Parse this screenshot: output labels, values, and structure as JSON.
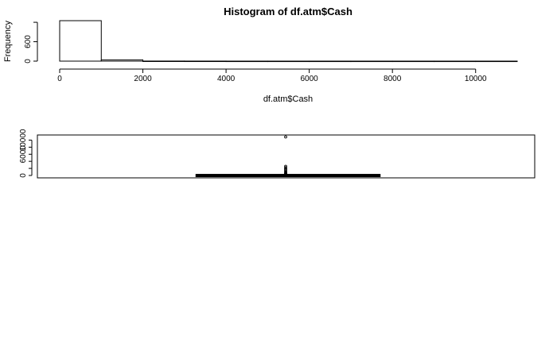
{
  "chart_data": [
    {
      "type": "histogram",
      "title": "Histogram of df.atm$Cash",
      "xlabel": "df.atm$Cash",
      "ylabel": "Frequency",
      "xlim": [
        0,
        11000
      ],
      "ylim": [
        0,
        1300
      ],
      "x_ticks": [
        0,
        2000,
        4000,
        6000,
        8000,
        10000
      ],
      "y_ticks": [
        0,
        600
      ],
      "bins": [
        {
          "x0": 0,
          "x1": 1000,
          "count": 1250
        },
        {
          "x0": 1000,
          "x1": 2000,
          "count": 40
        },
        {
          "x0": 2000,
          "x1": 3000,
          "count": 3
        },
        {
          "x0": 3000,
          "x1": 4000,
          "count": 2
        },
        {
          "x0": 4000,
          "x1": 5000,
          "count": 1
        },
        {
          "x0": 5000,
          "x1": 6000,
          "count": 1
        },
        {
          "x0": 6000,
          "x1": 7000,
          "count": 1
        },
        {
          "x0": 7000,
          "x1": 8000,
          "count": 1
        },
        {
          "x0": 8000,
          "x1": 9000,
          "count": 1
        },
        {
          "x0": 9000,
          "x1": 10000,
          "count": 1
        },
        {
          "x0": 10000,
          "x1": 11000,
          "count": 1
        }
      ]
    },
    {
      "type": "boxplot",
      "title": "",
      "ylabel": "",
      "ylim": [
        0,
        11000
      ],
      "y_ticks": [
        0,
        6000,
        10000
      ],
      "median": 70,
      "q1": 25,
      "q3": 150,
      "whisker_low": 0,
      "whisker_high": 340,
      "outliers": [
        350,
        450,
        600,
        800,
        1000,
        1300,
        1600,
        1900,
        2200,
        2600,
        10900
      ]
    }
  ]
}
